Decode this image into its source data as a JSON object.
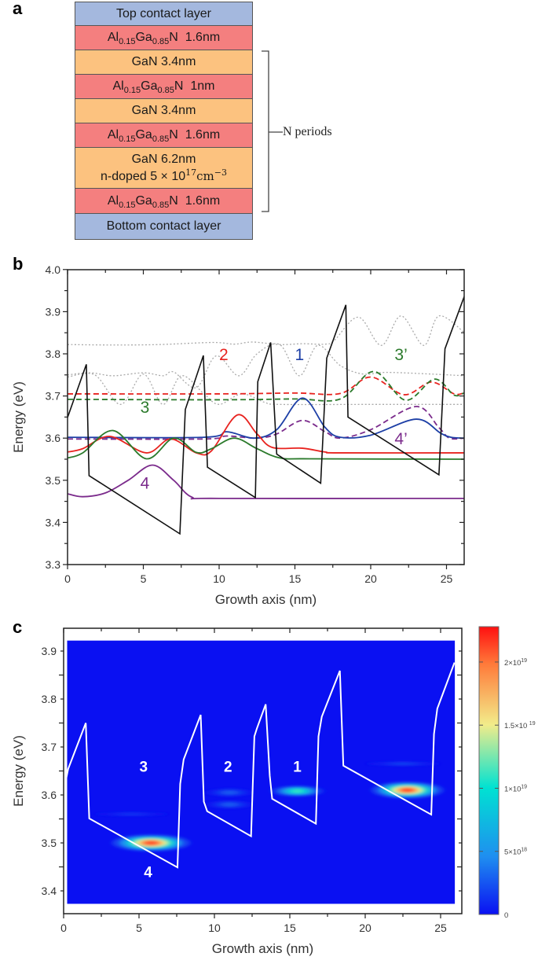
{
  "figure": {
    "panel_labels": {
      "a": "a",
      "b": "b",
      "c": "c"
    },
    "layer_colors": {
      "contact": "#a4b8de",
      "barrier": "#f47f7f",
      "well": "#fcc27f"
    },
    "layers": [
      {
        "kind": "contact",
        "text": "Top contact layer"
      },
      {
        "kind": "barrier",
        "el1": "Al",
        "sub1": "0.15",
        "el2": "Ga",
        "sub2": "0.85",
        "el3": "N",
        "thickness": "1.6nm"
      },
      {
        "kind": "well",
        "text": "GaN 3.4nm"
      },
      {
        "kind": "barrier",
        "el1": "Al",
        "sub1": "0.15",
        "el2": "Ga",
        "sub2": "0.85",
        "el3": "N",
        "thickness": "1nm"
      },
      {
        "kind": "well",
        "text": "GaN 3.4nm"
      },
      {
        "kind": "barrier",
        "el1": "Al",
        "sub1": "0.15",
        "el2": "Ga",
        "sub2": "0.85",
        "el3": "N",
        "thickness": "1.6nm"
      },
      {
        "kind": "doped",
        "text": "GaN 6.2nm",
        "line2": "n-doped 5 × 10",
        "sup1": "17",
        "unit": "cm",
        "sup2": "−3"
      },
      {
        "kind": "barrier",
        "el1": "Al",
        "sub1": "0.15",
        "el2": "Ga",
        "sub2": "0.85",
        "el3": "N",
        "thickness": "1.6nm"
      },
      {
        "kind": "contact",
        "text": "Bottom contact layer"
      }
    ],
    "bracket_label": "N periods"
  },
  "chart_data": [
    {
      "panel": "b",
      "type": "line",
      "xlabel": "Growth axis (nm)",
      "ylabel": "Energy (eV)",
      "xlim": [
        0,
        26.2
      ],
      "ylim": [
        3.3,
        4.0
      ],
      "xticks": [
        "0",
        "5",
        "10",
        "15",
        "20",
        "25"
      ],
      "yticks": [
        "3.3",
        "3.4",
        "3.5",
        "3.6",
        "3.7",
        "3.8",
        "3.9",
        "4.0"
      ],
      "grid": false,
      "series": [
        {
          "color": "#aaaaaa",
          "style": "dotted",
          "points": [
            [
              0,
              3.822
            ],
            [
              3,
              3.821
            ],
            [
              6,
              3.822
            ],
            [
              9.6,
              3.827
            ],
            [
              11,
              3.823
            ],
            [
              12.2,
              3.828
            ],
            [
              14,
              3.822
            ],
            [
              15.5,
              3.824
            ],
            [
              17,
              3.823
            ],
            [
              17.6,
              3.832
            ],
            [
              19.2,
              3.887
            ],
            [
              20.7,
              3.82
            ],
            [
              22,
              3.89
            ],
            [
              23.5,
              3.82
            ],
            [
              24.5,
              3.89
            ],
            [
              26.2,
              3.85
            ]
          ]
        },
        {
          "color": "#aaaaaa",
          "style": "dotted",
          "points": [
            [
              0,
              3.75
            ],
            [
              1.5,
              3.755
            ],
            [
              3,
              3.748
            ],
            [
              5,
              3.755
            ],
            [
              6.3,
              3.748
            ],
            [
              7,
              3.757
            ],
            [
              8.5,
              3.72
            ],
            [
              9.8,
              3.795
            ],
            [
              11.3,
              3.748
            ],
            [
              12.5,
              3.8
            ],
            [
              14,
              3.822
            ],
            [
              15.3,
              3.748
            ],
            [
              16.5,
              3.82
            ],
            [
              18,
              3.772
            ],
            [
              19.5,
              3.752
            ],
            [
              21,
              3.756
            ],
            [
              24,
              3.752
            ],
            [
              26.2,
              3.748
            ]
          ]
        },
        {
          "color": "#aaaaaa",
          "style": "dotted",
          "points": [
            [
              0,
              3.745
            ],
            [
              1.8,
              3.75
            ],
            [
              3.5,
              3.68
            ],
            [
              5,
              3.752
            ],
            [
              6.3,
              3.68
            ],
            [
              7.5,
              3.748
            ],
            [
              9,
              3.705
            ],
            [
              10,
              3.68
            ],
            [
              11.5,
              3.705
            ],
            [
              13,
              3.685
            ],
            [
              14,
              3.68
            ],
            [
              20,
              3.68
            ],
            [
              26.2,
              3.68
            ]
          ]
        },
        {
          "color": "#e8231f",
          "style": "dashed",
          "points": [
            [
              0,
              3.705
            ],
            [
              10,
              3.705
            ],
            [
              15,
              3.707
            ],
            [
              18,
              3.706
            ],
            [
              20,
              3.745
            ],
            [
              22.2,
              3.703
            ],
            [
              24,
              3.733
            ],
            [
              25.5,
              3.705
            ],
            [
              26.2,
              3.708
            ]
          ]
        },
        {
          "color": "#2b7a2b",
          "style": "dashed",
          "points": [
            [
              0,
              3.692
            ],
            [
              10,
              3.691
            ],
            [
              15,
              3.693
            ],
            [
              18,
              3.693
            ],
            [
              20.2,
              3.758
            ],
            [
              22.3,
              3.69
            ],
            [
              24.2,
              3.74
            ],
            [
              25.5,
              3.702
            ],
            [
              26.2,
              3.708
            ]
          ]
        },
        {
          "color": "#7b2b8c",
          "style": "dashed",
          "points": [
            [
              0,
              3.598
            ],
            [
              9,
              3.598
            ],
            [
              10.5,
              3.605
            ],
            [
              12.5,
              3.6
            ],
            [
              13.8,
              3.61
            ],
            [
              15.5,
              3.642
            ],
            [
              17,
              3.615
            ],
            [
              18,
              3.6
            ],
            [
              20,
              3.62
            ],
            [
              23,
              3.675
            ],
            [
              24.5,
              3.625
            ],
            [
              25.2,
              3.6
            ],
            [
              26.2,
              3.6
            ]
          ]
        },
        {
          "color": "#1d3fa6",
          "style": "solid",
          "points": [
            [
              0,
              3.602
            ],
            [
              9,
              3.602
            ],
            [
              10.5,
              3.615
            ],
            [
              12.3,
              3.6
            ],
            [
              13.8,
              3.62
            ],
            [
              15.5,
              3.695
            ],
            [
              17,
              3.625
            ],
            [
              18,
              3.602
            ],
            [
              20,
              3.607
            ],
            [
              23,
              3.645
            ],
            [
              24.6,
              3.612
            ],
            [
              25.3,
              3.602
            ],
            [
              26.2,
              3.6
            ]
          ]
        },
        {
          "color": "#e8231f",
          "style": "solid",
          "points": [
            [
              0,
              3.567
            ],
            [
              1,
              3.575
            ],
            [
              2.8,
              3.604
            ],
            [
              5.2,
              3.565
            ],
            [
              6.8,
              3.598
            ],
            [
              8.5,
              3.565
            ],
            [
              9.5,
              3.57
            ],
            [
              11.2,
              3.655
            ],
            [
              12.5,
              3.61
            ],
            [
              13.5,
              3.578
            ],
            [
              15.5,
              3.576
            ],
            [
              17,
              3.567
            ],
            [
              18,
              3.565
            ],
            [
              26.2,
              3.565
            ]
          ]
        },
        {
          "color": "#2b7a2b",
          "style": "solid",
          "points": [
            [
              0,
              3.553
            ],
            [
              1,
              3.565
            ],
            [
              3,
              3.618
            ],
            [
              5.2,
              3.551
            ],
            [
              7,
              3.6
            ],
            [
              8.5,
              3.566
            ],
            [
              9.5,
              3.575
            ],
            [
              11,
              3.6
            ],
            [
              12.5,
              3.575
            ],
            [
              14,
              3.553
            ],
            [
              16,
              3.551
            ],
            [
              26.2,
              3.55
            ]
          ]
        },
        {
          "color": "#7b2b8c",
          "style": "solid",
          "points": [
            [
              0,
              3.468
            ],
            [
              1,
              3.461
            ],
            [
              2.5,
              3.47
            ],
            [
              4,
              3.5
            ],
            [
              5.6,
              3.536
            ],
            [
              7,
              3.5
            ],
            [
              8.2,
              3.46
            ],
            [
              10,
              3.457
            ],
            [
              26.2,
              3.457
            ]
          ]
        },
        {
          "color": "#111111",
          "style": "solid",
          "smooth": false,
          "points": [
            [
              0,
              3.649
            ],
            [
              1.24,
              3.775
            ],
            [
              1.42,
              3.511
            ],
            [
              7.41,
              3.373
            ],
            [
              7.77,
              3.668
            ],
            [
              8.96,
              3.796
            ],
            [
              9.23,
              3.531
            ],
            [
              12.39,
              3.459
            ],
            [
              12.55,
              3.734
            ],
            [
              13.4,
              3.827
            ],
            [
              13.8,
              3.562
            ],
            [
              16.7,
              3.493
            ],
            [
              17.1,
              3.79
            ],
            [
              18.36,
              3.916
            ],
            [
              18.5,
              3.65
            ],
            [
              24.5,
              3.513
            ],
            [
              24.9,
              3.812
            ],
            [
              26.2,
              3.939
            ]
          ]
        }
      ],
      "annotations": [
        {
          "text": "2",
          "x": 10.3,
          "y": 3.785,
          "color": "#e8231f"
        },
        {
          "text": "1",
          "x": 15.3,
          "y": 3.785,
          "color": "#1d3fa6"
        },
        {
          "text": "3’",
          "x": 22.0,
          "y": 3.785,
          "color": "#2b7a2b"
        },
        {
          "text": "3",
          "x": 5.1,
          "y": 3.66,
          "color": "#2b7a2b"
        },
        {
          "text": "4’",
          "x": 22.0,
          "y": 3.585,
          "color": "#7b2b8c"
        },
        {
          "text": "4",
          "x": 5.1,
          "y": 3.48,
          "color": "#7b2b8c"
        }
      ]
    },
    {
      "panel": "c",
      "type": "heatmap",
      "xlabel": "Growth axis (nm)",
      "ylabel": "Energy (eV)",
      "xlim": [
        0,
        26.2
      ],
      "ylim": [
        3.35,
        3.948
      ],
      "data_extent": {
        "x": [
          0.23,
          25.95
        ],
        "y": [
          3.373,
          3.922
        ]
      },
      "xticks": [
        "0",
        "5",
        "10",
        "15",
        "20",
        "25"
      ],
      "yticks": [
        "3.4",
        "3.5",
        "3.6",
        "3.7",
        "3.8",
        "3.9"
      ],
      "colorbar": {
        "min": 0,
        "max": 2.28e+19,
        "ticks": [
          {
            "value": 0,
            "mant": "0",
            "exp": ""
          },
          {
            "value": 5e+18,
            "mant": "5×10",
            "exp": "18"
          },
          {
            "value": 1e+19,
            "mant": "1×10",
            "exp": "19"
          },
          {
            "value": 1.5e+19,
            "mant": "1.5×10",
            "exp": "19"
          },
          {
            "value": 2e+19,
            "mant": "2×10",
            "exp": "19"
          }
        ],
        "colormap": [
          [
            0,
            "#0a10f2"
          ],
          [
            0.2,
            "#1f8ef0"
          ],
          [
            0.44,
            "#00e2d2"
          ],
          [
            0.66,
            "#f2ec8a"
          ],
          [
            0.87,
            "#ff7a3a"
          ],
          [
            1,
            "#ff1010"
          ]
        ]
      },
      "peaks": [
        {
          "x": 5.8,
          "energy": 3.5,
          "x_span": 5.2,
          "e_span": 0.032,
          "density": 2.28e+19
        },
        {
          "x": 22.8,
          "energy": 3.61,
          "x_span": 4.8,
          "e_span": 0.032,
          "density": 2.28e+19
        },
        {
          "x": 15.5,
          "energy": 3.608,
          "x_span": 3.6,
          "e_span": 0.02,
          "density": 1.2e+19
        },
        {
          "x": 11.0,
          "energy": 3.605,
          "x_span": 3.2,
          "e_span": 0.014,
          "density": 3e+18
        },
        {
          "x": 11.0,
          "energy": 3.58,
          "x_span": 3.2,
          "e_span": 0.014,
          "density": 3e+18
        },
        {
          "x": 22.5,
          "energy": 3.665,
          "x_span": 5.0,
          "e_span": 0.006,
          "density": 2e+18
        },
        {
          "x": 4.5,
          "energy": 3.56,
          "x_span": 5.0,
          "e_span": 0.005,
          "density": 1.5e+18
        }
      ],
      "profile": {
        "color": "#ffffff",
        "points": [
          [
            0.1,
            3.623
          ],
          [
            0.3,
            3.654
          ],
          [
            1.47,
            3.75
          ],
          [
            1.7,
            3.551
          ],
          [
            7.55,
            3.449
          ],
          [
            7.73,
            3.623
          ],
          [
            7.96,
            3.674
          ],
          [
            9.09,
            3.767
          ],
          [
            9.3,
            3.586
          ],
          [
            9.52,
            3.566
          ],
          [
            12.43,
            3.514
          ],
          [
            12.65,
            3.722
          ],
          [
            12.81,
            3.738
          ],
          [
            13.4,
            3.789
          ],
          [
            13.67,
            3.64
          ],
          [
            13.83,
            3.592
          ],
          [
            16.73,
            3.54
          ],
          [
            16.9,
            3.722
          ],
          [
            17.12,
            3.763
          ],
          [
            18.32,
            3.859
          ],
          [
            18.55,
            3.661
          ],
          [
            24.38,
            3.559
          ],
          [
            24.56,
            3.727
          ],
          [
            24.78,
            3.78
          ],
          [
            25.92,
            3.876
          ]
        ]
      },
      "annotations": [
        {
          "text": "3",
          "x": 5.3,
          "y": 3.66,
          "color": "#ffffff"
        },
        {
          "text": "2",
          "x": 10.9,
          "y": 3.66,
          "color": "#ffffff"
        },
        {
          "text": "1",
          "x": 15.5,
          "y": 3.66,
          "color": "#ffffff"
        },
        {
          "text": "4",
          "x": 5.6,
          "y": 3.44,
          "color": "#ffffff"
        }
      ]
    }
  ]
}
